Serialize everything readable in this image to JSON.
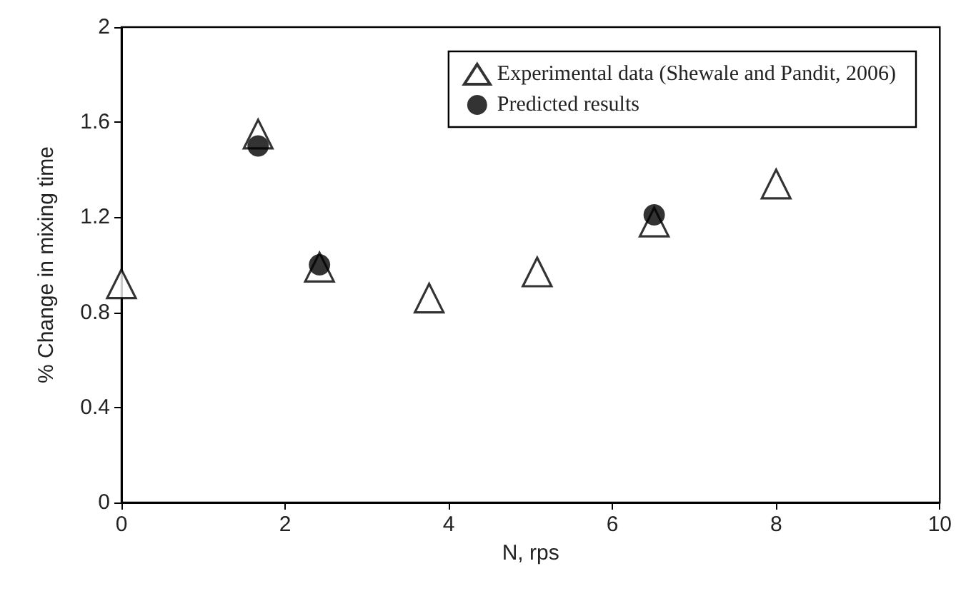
{
  "chart_data": {
    "type": "scatter",
    "xlabel": "N, rps",
    "ylabel": "% Change in mixing time",
    "xlim": [
      0,
      10
    ],
    "xticks": [
      0,
      2,
      4,
      6,
      8,
      10
    ],
    "ylim": [
      0,
      2
    ],
    "yticks": [
      0,
      0.4,
      0.8,
      1.2,
      1.6,
      2
    ],
    "grid": false,
    "legend": "top right",
    "series": [
      {
        "name": "Experimental data (Shewale and Pandit, 2006)",
        "color": "#000000",
        "marker": "triangle",
        "x": [
          0,
          1.67,
          2.42,
          3.76,
          5.08,
          6.51,
          8.0
        ],
        "values": [
          0.92,
          1.55,
          0.99,
          0.86,
          0.97,
          1.18,
          1.34
        ]
      },
      {
        "name": "Predicted results",
        "color": "#000000",
        "marker": "circle",
        "x": [
          1.67,
          2.42,
          6.51
        ],
        "values": [
          1.5,
          1.0,
          1.21
        ]
      }
    ]
  }
}
